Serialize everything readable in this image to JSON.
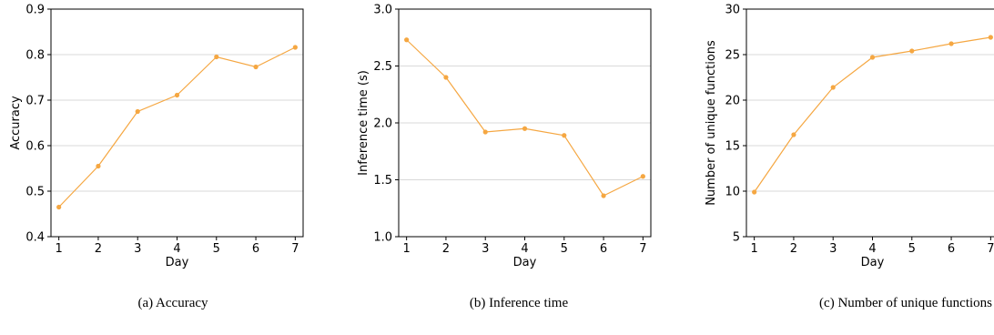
{
  "accent_color": "#f5a742",
  "grid_color": "#d9d9d9",
  "panels": [
    {
      "caption": "(a)  Accuracy",
      "chart_data": {
        "type": "line",
        "x": [
          1,
          2,
          3,
          4,
          5,
          6,
          7
        ],
        "values": [
          0.465,
          0.555,
          0.675,
          0.711,
          0.795,
          0.773,
          0.816
        ],
        "xlabel": "Day",
        "ylabel": "Accuracy",
        "xlim": [
          0.8,
          7.2
        ],
        "ylim": [
          0.4,
          0.9
        ],
        "xticks": [
          "1",
          "2",
          "3",
          "4",
          "5",
          "6",
          "7"
        ],
        "yticks": [
          "0.4",
          "0.5",
          "0.6",
          "0.7",
          "0.8",
          "0.9"
        ],
        "grid": "horizontal"
      }
    },
    {
      "caption": "(b)  Inference time",
      "chart_data": {
        "type": "line",
        "x": [
          1,
          2,
          3,
          4,
          5,
          6,
          7
        ],
        "values": [
          2.73,
          2.4,
          1.92,
          1.95,
          1.89,
          1.36,
          1.53
        ],
        "xlabel": "Day",
        "ylabel": "Inference time (s)",
        "xlim": [
          0.8,
          7.2
        ],
        "ylim": [
          1.0,
          3.0
        ],
        "xticks": [
          "1",
          "2",
          "3",
          "4",
          "5",
          "6",
          "7"
        ],
        "yticks": [
          "1.0",
          "1.5",
          "2.0",
          "2.5",
          "3.0"
        ],
        "grid": "horizontal"
      }
    },
    {
      "caption": "(c)  Number of unique functions",
      "chart_data": {
        "type": "line",
        "x": [
          1,
          2,
          3,
          4,
          5,
          6,
          7
        ],
        "values": [
          9.9,
          16.2,
          21.4,
          24.7,
          25.4,
          26.2,
          26.9
        ],
        "xlabel": "Day",
        "ylabel": "Number of unique functions",
        "xlim": [
          0.8,
          7.2
        ],
        "ylim": [
          5,
          30
        ],
        "xticks": [
          "1",
          "2",
          "3",
          "4",
          "5",
          "6",
          "7"
        ],
        "yticks": [
          "5",
          "10",
          "15",
          "20",
          "25",
          "30"
        ],
        "grid": "horizontal"
      }
    }
  ]
}
